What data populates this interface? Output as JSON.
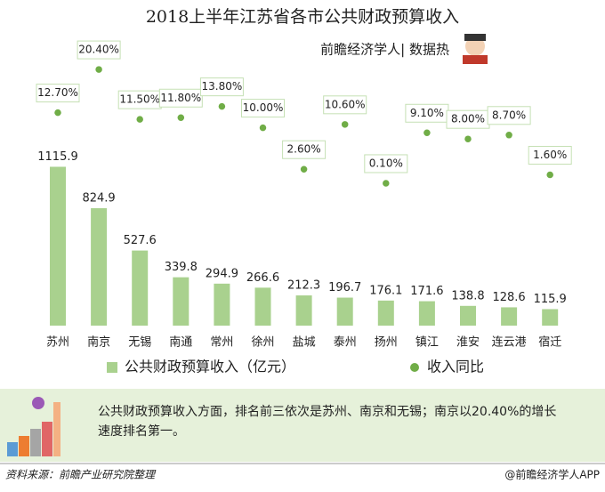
{
  "chart_data": {
    "type": "bar",
    "title": "2018上半年江苏省各市公共财政预算收入",
    "subtitle": "前瞻经济学人| 数据热",
    "categories": [
      "苏州",
      "南京",
      "无锡",
      "南通",
      "常州",
      "徐州",
      "盐城",
      "泰州",
      "扬州",
      "镇江",
      "淮安",
      "连云港",
      "宿迁"
    ],
    "series": [
      {
        "name": "公共财政预算收入（亿元）",
        "type": "bar",
        "color": "#a9d18e",
        "values": [
          1115.9,
          824.9,
          527.6,
          339.8,
          294.9,
          266.6,
          212.3,
          196.7,
          176.1,
          171.6,
          138.8,
          128.6,
          115.9
        ]
      },
      {
        "name": "收入同比",
        "type": "scatter",
        "color": "#70ad47",
        "values": [
          12.7,
          20.4,
          11.5,
          11.8,
          13.8,
          10.0,
          2.6,
          10.6,
          0.1,
          9.1,
          8.0,
          8.7,
          1.6
        ],
        "value_labels": [
          "12.70%",
          "20.40%",
          "11.50%",
          "11.80%",
          "13.80%",
          "10.00%",
          "2.60%",
          "10.60%",
          "0.10%",
          "9.10%",
          "8.00%",
          "8.70%",
          "1.60%"
        ]
      }
    ],
    "note": "公共财政预算收入方面，排名前三依次是苏州、南京和无锡；南京以20.40%的增长速度排名第一。",
    "source": "资料来源：前瞻产业研究院整理",
    "brand": "@前瞻经济学人APP"
  }
}
